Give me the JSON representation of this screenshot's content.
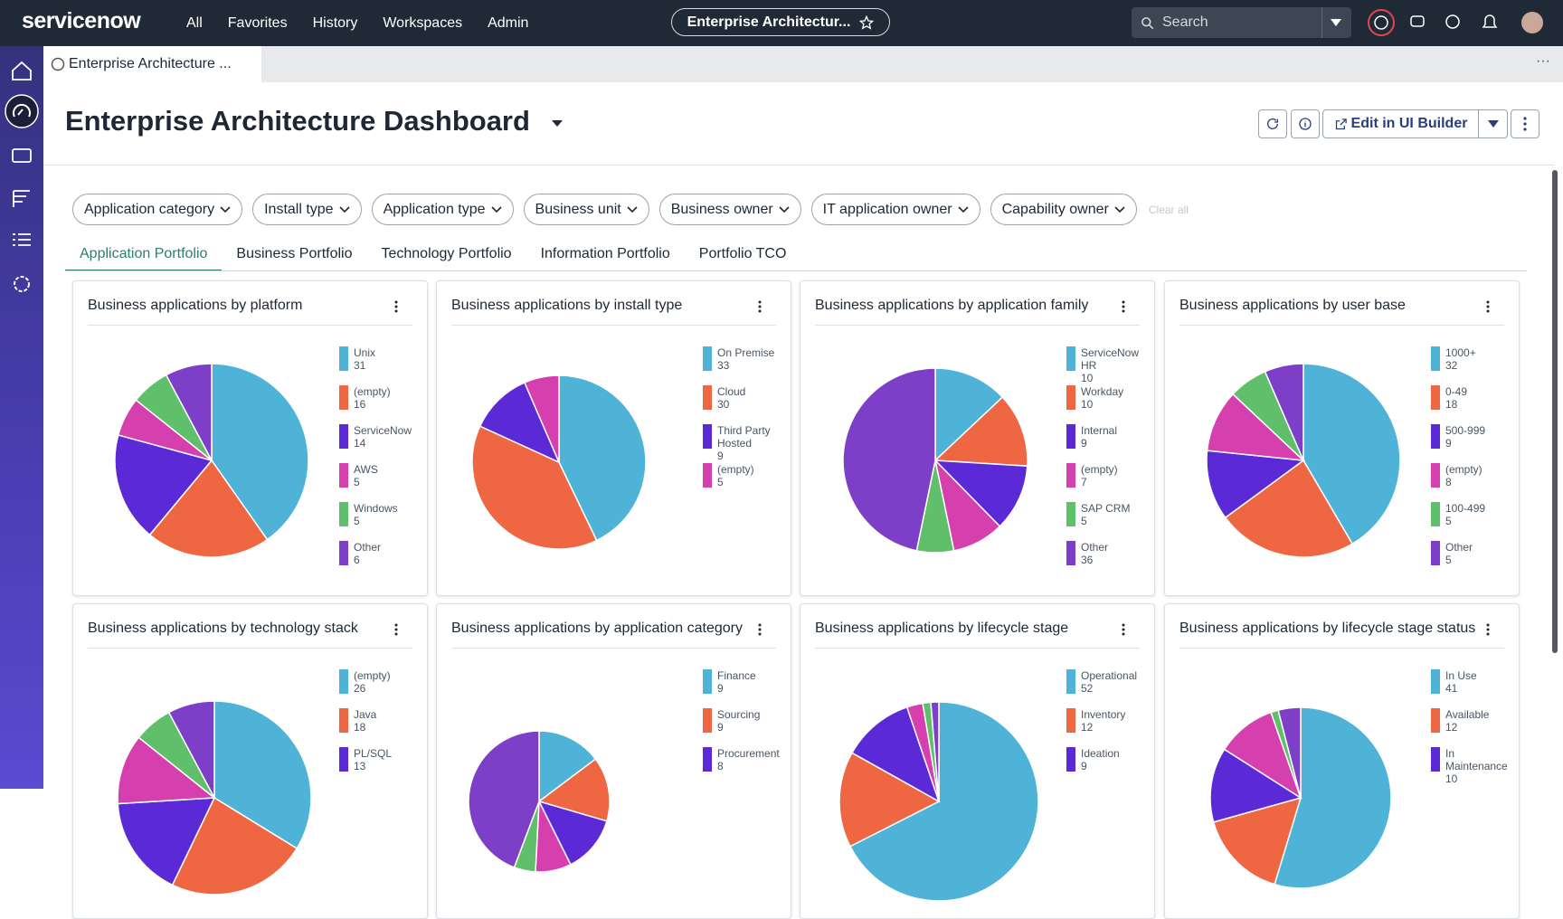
{
  "nav": {
    "brand": "servicenow",
    "menu": [
      "All",
      "Favorites",
      "History",
      "Workspaces",
      "Admin"
    ],
    "context": "Enterprise Architectur...",
    "search": "Search"
  },
  "browser_tab": "Enterprise Architecture ...",
  "page": {
    "title": "Enterprise Architecture Dashboard",
    "edit_button": "Edit in UI Builder"
  },
  "filters": [
    "Application category",
    "Install type",
    "Application type",
    "Business unit",
    "Business owner",
    "IT application owner",
    "Capability owner"
  ],
  "clear_all": "Clear all",
  "tabs": [
    "Application Portfolio",
    "Business Portfolio",
    "Technology Portfolio",
    "Information Portfolio",
    "Portfolio TCO"
  ],
  "chart_data": [
    {
      "type": "pie",
      "title": "Business applications by platform",
      "categories": [
        "Unix",
        "(empty)",
        "ServiceNow",
        "AWS",
        "Windows",
        "Other"
      ],
      "values": [
        31,
        16,
        14,
        5,
        5,
        6
      ],
      "colors": [
        "#4fb3d8",
        "#ef6642",
        "#5b2ad6",
        "#d63fae",
        "#5fbf6a",
        "#7e3fc8"
      ]
    },
    {
      "type": "pie",
      "title": "Business applications by install type",
      "categories": [
        "On Premise",
        "Cloud",
        "Third Party Hosted",
        "(empty)"
      ],
      "values": [
        33,
        30,
        9,
        5
      ],
      "colors": [
        "#4fb3d8",
        "#ef6642",
        "#5b2ad6",
        "#d63fae"
      ]
    },
    {
      "type": "pie",
      "title": "Business applications by application family",
      "categories": [
        "ServiceNow HR",
        "Workday",
        "Internal",
        "(empty)",
        "SAP CRM",
        "Other"
      ],
      "values": [
        10,
        10,
        9,
        7,
        5,
        36
      ],
      "colors": [
        "#4fb3d8",
        "#ef6642",
        "#5b2ad6",
        "#d63fae",
        "#5fbf6a",
        "#7e3fc8"
      ]
    },
    {
      "type": "pie",
      "title": "Business applications by user base",
      "categories": [
        "1000+",
        "0-49",
        "500-999",
        "(empty)",
        "100-499",
        "Other"
      ],
      "values": [
        32,
        18,
        9,
        8,
        5,
        5
      ],
      "colors": [
        "#4fb3d8",
        "#ef6642",
        "#5b2ad6",
        "#d63fae",
        "#5fbf6a",
        "#7e3fc8"
      ]
    },
    {
      "type": "pie",
      "title": "Business applications by technology stack",
      "categories": [
        "(empty)",
        "Java",
        "PL/SQL",
        null,
        null,
        null
      ],
      "values": [
        26,
        18,
        13,
        9,
        5,
        6
      ],
      "colors": [
        "#4fb3d8",
        "#ef6642",
        "#5b2ad6",
        "#d63fae",
        "#5fbf6a",
        "#7e3fc8"
      ]
    },
    {
      "type": "pie",
      "title": "Business applications by application category",
      "categories": [
        "Finance",
        "Sourcing",
        "Procurement",
        null,
        null,
        null
      ],
      "values": [
        9,
        9,
        8,
        5,
        3,
        27
      ],
      "colors": [
        "#4fb3d8",
        "#ef6642",
        "#5b2ad6",
        "#d63fae",
        "#5fbf6a",
        "#7e3fc8"
      ]
    },
    {
      "type": "pie",
      "title": "Business applications by lifecycle stage",
      "categories": [
        "Operational",
        "Inventory",
        "Ideation",
        null,
        null,
        null
      ],
      "values": [
        52,
        12,
        9,
        2,
        1,
        1
      ],
      "colors": [
        "#4fb3d8",
        "#ef6642",
        "#5b2ad6",
        "#d63fae",
        "#5fbf6a",
        "#7e3fc8"
      ]
    },
    {
      "type": "pie",
      "title": "Business applications by lifecycle stage status",
      "categories": [
        "In Use",
        "Available",
        "In Maintenance",
        null,
        null,
        null
      ],
      "values": [
        41,
        12,
        10,
        8,
        1,
        3
      ],
      "colors": [
        "#4fb3d8",
        "#ef6642",
        "#5b2ad6",
        "#d63fae",
        "#5fbf6a",
        "#7e3fc8"
      ]
    }
  ]
}
